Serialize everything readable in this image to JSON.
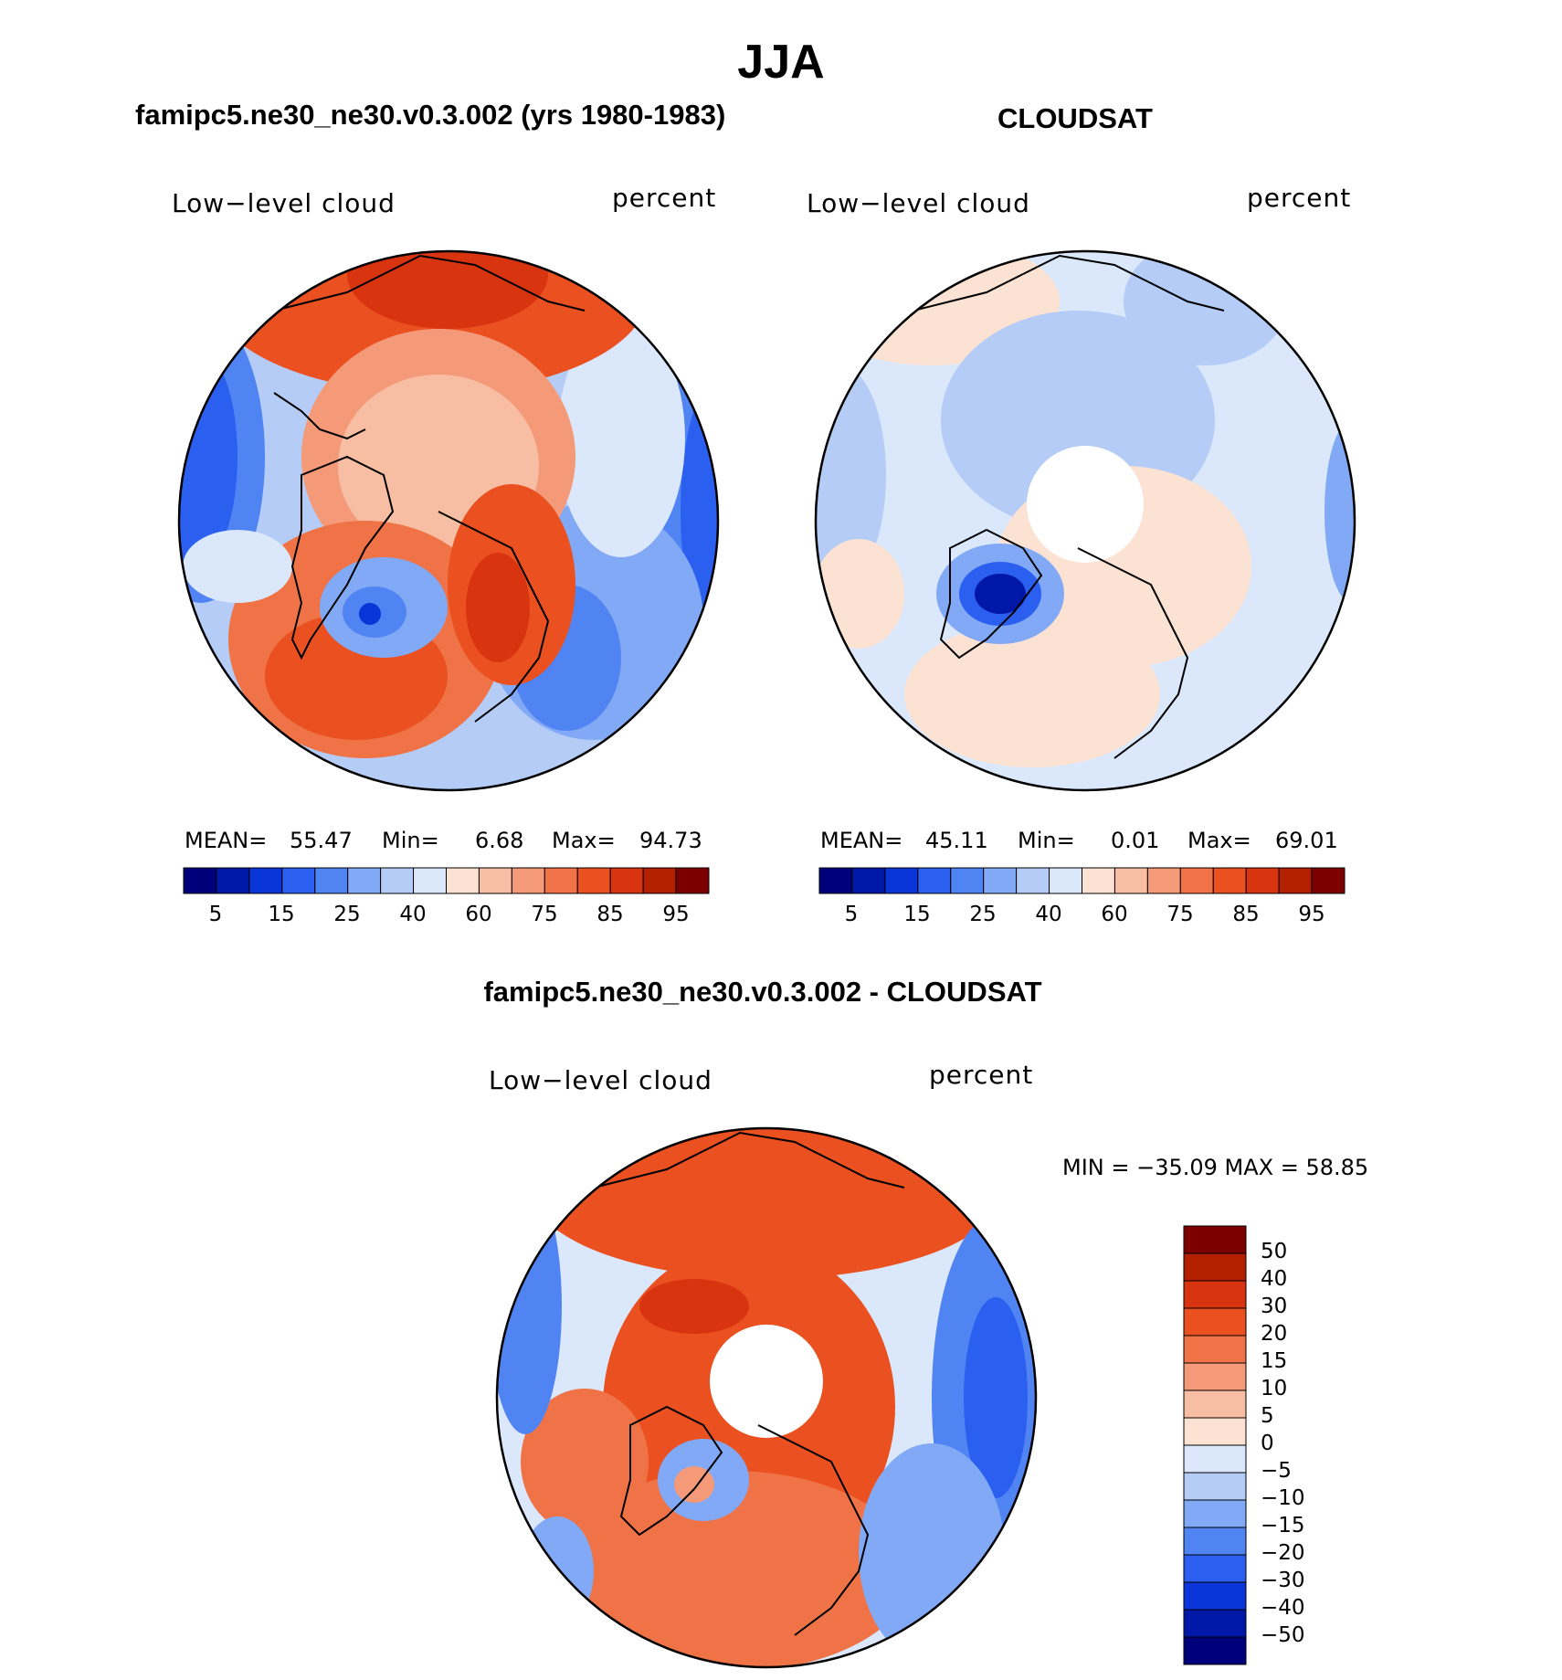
{
  "title": "JJA",
  "palette": {
    "mean_colors": [
      "#00007a",
      "#0018a8",
      "#0a35d8",
      "#2a5ff0",
      "#5184f3",
      "#82a9f5",
      "#b5ccf7",
      "#dbe8fb",
      "#fbe2d2",
      "#f7bea3",
      "#f49a79",
      "#ef7347",
      "#ea5020",
      "#d83410",
      "#b22000",
      "#7c0000"
    ],
    "diff_colors": [
      "#00007a",
      "#0018a8",
      "#0a35d8",
      "#2a5ff0",
      "#5184f3",
      "#82a9f5",
      "#b5ccf7",
      "#dbe8fb",
      "#fbe2d2",
      "#f7bea3",
      "#f49a79",
      "#ef7347",
      "#ea5020",
      "#d83410",
      "#b22000",
      "#7c0000"
    ]
  },
  "panels": {
    "model": {
      "subtitle": "famipc5.ne30_ne30.v0.3.002 (yrs 1980-1983)",
      "variable_label": "Low−level cloud",
      "units_label": "percent",
      "mean_label": "MEAN=",
      "mean_value": "55.47",
      "min_label": "Min=",
      "min_value": "6.68",
      "max_label": "Max=",
      "max_value": "94.73"
    },
    "obs": {
      "subtitle": "CLOUDSAT",
      "variable_label": "Low−level cloud",
      "units_label": "percent",
      "mean_label": "MEAN=",
      "mean_value": "45.11",
      "min_label": "Min=",
      "min_value": "0.01",
      "max_label": "Max=",
      "max_value": "69.01"
    },
    "diff": {
      "subtitle": "famipc5.ne30_ne30.v0.3.002 - CLOUDSAT",
      "variable_label": "Low−level cloud",
      "units_label": "percent",
      "minmax_text": "MIN = −35.09 MAX =   58.85"
    }
  },
  "mean_colorbar_ticks": [
    "5",
    "15",
    "25",
    "40",
    "60",
    "75",
    "85",
    "95"
  ],
  "diff_colorbar_ticks": [
    "50",
    "40",
    "30",
    "20",
    "15",
    "10",
    "5",
    "0",
    "−5",
    "−10",
    "−15",
    "−20",
    "−30",
    "−40",
    "−50"
  ]
}
